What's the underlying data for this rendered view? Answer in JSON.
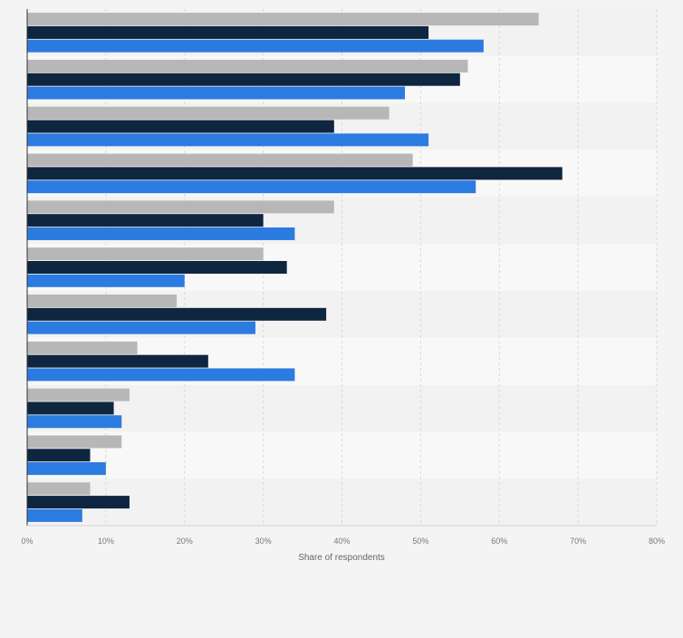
{
  "chart_data": {
    "type": "bar",
    "orientation": "horizontal",
    "categories": [
      "",
      "",
      "",
      "",
      "",
      "",
      "",
      "",
      "",
      "",
      ""
    ],
    "series": [
      {
        "color": "#b7b7b7",
        "values": [
          65,
          56,
          46,
          49,
          39,
          30,
          19,
          14,
          13,
          12,
          8
        ]
      },
      {
        "color": "#0f2640",
        "values": [
          51,
          55,
          39,
          68,
          30,
          33,
          38,
          23,
          11,
          8,
          13
        ]
      },
      {
        "color": "#2c7be0",
        "values": [
          58,
          48,
          51,
          57,
          34,
          20,
          29,
          34,
          12,
          10,
          7
        ]
      }
    ],
    "xlabel": "Share of respondents",
    "xlim": [
      0,
      80
    ],
    "tick_labels": [
      "0%",
      "10%",
      "20%",
      "30%",
      "40%",
      "50%",
      "60%",
      "70%",
      "80%"
    ],
    "grid": true,
    "legend": "none"
  }
}
